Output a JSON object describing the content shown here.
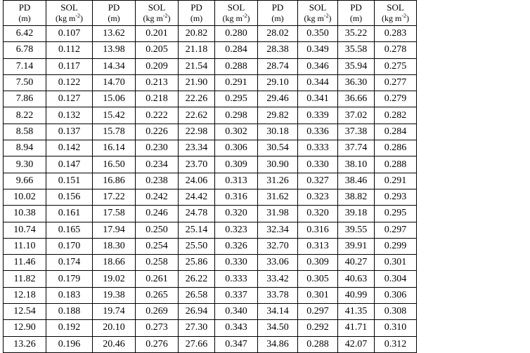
{
  "header": {
    "pd_label": "PD",
    "pd_unit": "(m)",
    "sol_label": "SOL",
    "sol_unit_base": "(kg m",
    "sol_unit_exp": "-2",
    "sol_unit_close": ")"
  },
  "rows": [
    [
      "6.42",
      "0.107",
      "13.62",
      "0.201",
      "20.82",
      "0.280",
      "28.02",
      "0.350",
      "35.22",
      "0.283"
    ],
    [
      "6.78",
      "0.112",
      "13.98",
      "0.205",
      "21.18",
      "0.284",
      "28.38",
      "0.349",
      "35.58",
      "0.278"
    ],
    [
      "7.14",
      "0.117",
      "14.34",
      "0.209",
      "21.54",
      "0.288",
      "28.74",
      "0.346",
      "35.94",
      "0.275"
    ],
    [
      "7.50",
      "0.122",
      "14.70",
      "0.213",
      "21.90",
      "0.291",
      "29.10",
      "0.344",
      "36.30",
      "0.277"
    ],
    [
      "7.86",
      "0.127",
      "15.06",
      "0.218",
      "22.26",
      "0.295",
      "29.46",
      "0.341",
      "36.66",
      "0.279"
    ],
    [
      "8.22",
      "0.132",
      "15.42",
      "0.222",
      "22.62",
      "0.298",
      "29.82",
      "0.339",
      "37.02",
      "0.282"
    ],
    [
      "8.58",
      "0.137",
      "15.78",
      "0.226",
      "22.98",
      "0.302",
      "30.18",
      "0.336",
      "37.38",
      "0.284"
    ],
    [
      "8.94",
      "0.142",
      "16.14",
      "0.230",
      "23.34",
      "0.306",
      "30.54",
      "0.333",
      "37.74",
      "0.286"
    ],
    [
      "9.30",
      "0.147",
      "16.50",
      "0.234",
      "23.70",
      "0.309",
      "30.90",
      "0.330",
      "38.10",
      "0.288"
    ],
    [
      "9.66",
      "0.151",
      "16.86",
      "0.238",
      "24.06",
      "0.313",
      "31.26",
      "0.327",
      "38.46",
      "0.291"
    ],
    [
      "10.02",
      "0.156",
      "17.22",
      "0.242",
      "24.42",
      "0.316",
      "31.62",
      "0.323",
      "38.82",
      "0.293"
    ],
    [
      "10.38",
      "0.161",
      "17.58",
      "0.246",
      "24.78",
      "0.320",
      "31.98",
      "0.320",
      "39.18",
      "0.295"
    ],
    [
      "10.74",
      "0.165",
      "17.94",
      "0.250",
      "25.14",
      "0.323",
      "32.34",
      "0.316",
      "39.55",
      "0.297"
    ],
    [
      "11.10",
      "0.170",
      "18.30",
      "0.254",
      "25.50",
      "0.326",
      "32.70",
      "0.313",
      "39.91",
      "0.299"
    ],
    [
      "11.46",
      "0.174",
      "18.66",
      "0.258",
      "25.86",
      "0.330",
      "33.06",
      "0.309",
      "40.27",
      "0.301"
    ],
    [
      "11.82",
      "0.179",
      "19.02",
      "0.261",
      "26.22",
      "0.333",
      "33.42",
      "0.305",
      "40.63",
      "0.304"
    ],
    [
      "12.18",
      "0.183",
      "19.38",
      "0.265",
      "26.58",
      "0.337",
      "33.78",
      "0.301",
      "40.99",
      "0.306"
    ],
    [
      "12.54",
      "0.188",
      "19.74",
      "0.269",
      "26.94",
      "0.340",
      "34.14",
      "0.297",
      "41.35",
      "0.308"
    ],
    [
      "12.90",
      "0.192",
      "20.10",
      "0.273",
      "27.30",
      "0.343",
      "34.50",
      "0.292",
      "41.71",
      "0.310"
    ],
    [
      "13.26",
      "0.196",
      "20.46",
      "0.276",
      "27.66",
      "0.347",
      "34.86",
      "0.288",
      "42.07",
      "0.312"
    ]
  ]
}
